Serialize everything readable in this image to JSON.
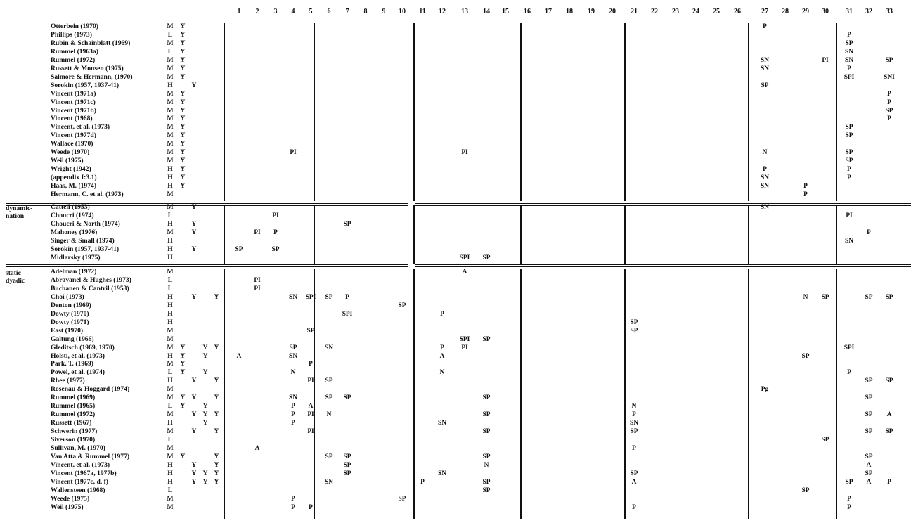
{
  "columns": [
    "1",
    "2",
    "3",
    "4",
    "5",
    "6",
    "7",
    "8",
    "9",
    "10",
    "11",
    "12",
    "13",
    "14",
    "15",
    "16",
    "17",
    "18",
    "19",
    "20",
    "21",
    "22",
    "23",
    "24",
    "25",
    "26",
    "27",
    "28",
    "29",
    "30",
    "31",
    "32",
    "33"
  ],
  "sections": [
    {
      "label": "",
      "rows": [
        {
          "ref": "Otterbein (1970)",
          "f": [
            "M",
            "Y"
          ],
          "marks": [
            [
              27,
              "P"
            ]
          ]
        },
        {
          "ref": "Phillips (1973)",
          "f": [
            "L",
            "Y"
          ],
          "marks": [
            [
              31,
              "P"
            ]
          ]
        },
        {
          "ref": "Rubin & Schainblatt (1969)",
          "f": [
            "M",
            "Y"
          ],
          "marks": [
            [
              31,
              "SP"
            ]
          ]
        },
        {
          "ref": "Rummel (1963a)",
          "f": [
            "L",
            "Y"
          ],
          "marks": [
            [
              31,
              "SN"
            ]
          ]
        },
        {
          "ref": "Rummel (1972)",
          "f": [
            "M",
            "Y"
          ],
          "marks": [
            [
              27,
              "SN"
            ],
            [
              30,
              "PI"
            ],
            [
              31,
              "SN"
            ],
            [
              33,
              "SP"
            ]
          ]
        },
        {
          "ref": "Russett & Monsen (1975)",
          "f": [
            "M",
            "Y"
          ],
          "marks": [
            [
              27,
              "SN"
            ],
            [
              31,
              "P"
            ]
          ]
        },
        {
          "ref": "Salmore & Hermann, (1970)",
          "f": [
            "M",
            "Y"
          ],
          "marks": [
            [
              31,
              "SPI"
            ],
            [
              33,
              "SNI"
            ]
          ]
        },
        {
          "ref": "Sorokin (1957, 1937-41)",
          "f": [
            "H",
            "",
            "Y"
          ],
          "marks": [
            [
              27,
              "SP"
            ]
          ]
        },
        {
          "ref": "Vincent (1971a)",
          "f": [
            "M",
            "Y"
          ],
          "marks": [
            [
              33,
              "P"
            ]
          ]
        },
        {
          "ref": "Vincent (1971c)",
          "f": [
            "M",
            "Y"
          ],
          "marks": [
            [
              33,
              "P"
            ]
          ]
        },
        {
          "ref": "Vincent (1971b)",
          "f": [
            "M",
            "Y"
          ],
          "marks": [
            [
              33,
              "SP"
            ]
          ]
        },
        {
          "ref": "Vincent (1968)",
          "f": [
            "M",
            "Y"
          ],
          "marks": [
            [
              33,
              "P"
            ]
          ]
        },
        {
          "ref": "Vincent, et al. (1973)",
          "f": [
            "M",
            "Y"
          ],
          "marks": [
            [
              31,
              "SP"
            ]
          ]
        },
        {
          "ref": "Vincent (1977d)",
          "f": [
            "M",
            "Y"
          ],
          "marks": [
            [
              31,
              "SP"
            ]
          ]
        },
        {
          "ref": "Wallace (1970)",
          "f": [
            "M",
            "Y"
          ],
          "marks": []
        },
        {
          "ref": "Weede (1970)",
          "f": [
            "M",
            "Y"
          ],
          "marks": [
            [
              4,
              "PI"
            ],
            [
              13,
              "PI"
            ],
            [
              27,
              "N"
            ],
            [
              31,
              "SP"
            ]
          ]
        },
        {
          "ref": "Weil (1975)",
          "f": [
            "M",
            "Y"
          ],
          "marks": [
            [
              31,
              "SP"
            ]
          ]
        },
        {
          "ref": "Wright (1942)",
          "f": [
            "H",
            "Y"
          ],
          "marks": [
            [
              27,
              "P"
            ],
            [
              31,
              "P"
            ]
          ]
        },
        {
          "ref": "(appendix I:3.1)",
          "f": [
            "H",
            "Y"
          ],
          "marks": [
            [
              27,
              "SN"
            ],
            [
              31,
              "P"
            ]
          ]
        },
        {
          "ref": "Haas, M. (1974)",
          "f": [
            "H",
            "Y"
          ],
          "marks": [
            [
              27,
              "SN"
            ],
            [
              29,
              "P"
            ]
          ]
        },
        {
          "ref": "Hermann, C. et al. (1973)",
          "f": [
            "M"
          ],
          "marks": [
            [
              29,
              "P"
            ]
          ]
        }
      ]
    },
    {
      "label": "dynamic-\nnation",
      "rows": [
        {
          "ref": "Cattell (1953)",
          "f": [
            "M",
            "",
            "Y"
          ],
          "marks": [
            [
              27,
              "SN"
            ]
          ]
        },
        {
          "ref": "Choucri (1974)",
          "f": [
            "L"
          ],
          "marks": [
            [
              3,
              "PI"
            ],
            [
              31,
              "PI"
            ]
          ]
        },
        {
          "ref": "Choucri & North (1974)",
          "f": [
            "H",
            "",
            "Y"
          ],
          "marks": [
            [
              7,
              "SP"
            ]
          ]
        },
        {
          "ref": "Mahoney (1976)",
          "f": [
            "M",
            "",
            "Y"
          ],
          "marks": [
            [
              2,
              "PI"
            ],
            [
              3,
              "P"
            ],
            [
              32,
              "P"
            ]
          ]
        },
        {
          "ref": "Singer & Small (1974)",
          "f": [
            "H"
          ],
          "marks": [
            [
              31,
              "SN"
            ]
          ]
        },
        {
          "ref": "Sorokin (1957, 1937-41)",
          "f": [
            "H",
            "",
            "Y"
          ],
          "marks": [
            [
              1,
              "SP"
            ],
            [
              3,
              "SP"
            ]
          ]
        },
        {
          "ref": "Midlarsky (1975)",
          "f": [
            "H"
          ],
          "marks": [
            [
              13,
              "SPI"
            ],
            [
              14,
              "SP"
            ]
          ]
        }
      ]
    },
    {
      "label": "static-\ndyadic",
      "rows": [
        {
          "ref": "Adelman (1972)",
          "f": [
            "M"
          ],
          "marks": [
            [
              13,
              "A"
            ]
          ]
        },
        {
          "ref": "Abravanel & Hughes (1973)",
          "f": [
            "L"
          ],
          "marks": [
            [
              2,
              "PI"
            ]
          ]
        },
        {
          "ref": "Buchanen & Cantril (1953)",
          "f": [
            "L"
          ],
          "marks": [
            [
              2,
              "PI"
            ]
          ]
        },
        {
          "ref": "Choi (1973)",
          "f": [
            "H",
            "",
            "Y",
            "",
            "Y"
          ],
          "marks": [
            [
              4,
              "SN"
            ],
            [
              5,
              "SPI"
            ],
            [
              6,
              "SP"
            ],
            [
              7,
              "P"
            ],
            [
              29,
              "N"
            ],
            [
              30,
              "SP"
            ],
            [
              32,
              "SP"
            ],
            [
              33,
              "SP"
            ]
          ]
        },
        {
          "ref": "Denton (1969)",
          "f": [
            "H"
          ],
          "marks": [
            [
              10,
              "SP"
            ]
          ]
        },
        {
          "ref": "Dowty (1970)",
          "f": [
            "H"
          ],
          "marks": [
            [
              7,
              "SPI"
            ],
            [
              12,
              "P"
            ]
          ]
        },
        {
          "ref": "Dowty (1971)",
          "f": [
            "H"
          ],
          "marks": [
            [
              21,
              "SP"
            ]
          ]
        },
        {
          "ref": "East (1970)",
          "f": [
            "M"
          ],
          "marks": [
            [
              5,
              "SP"
            ],
            [
              21,
              "SP"
            ]
          ]
        },
        {
          "ref": "Galtung (1966)",
          "f": [
            "M"
          ],
          "marks": [
            [
              13,
              "SPI"
            ],
            [
              14,
              "SP"
            ]
          ]
        },
        {
          "ref": "Gleditsch (1969, 1970)",
          "f": [
            "M",
            "Y",
            "",
            "Y",
            "Y"
          ],
          "marks": [
            [
              4,
              "SP"
            ],
            [
              6,
              "SN"
            ],
            [
              12,
              "P"
            ],
            [
              13,
              "PI"
            ],
            [
              31,
              "SPI"
            ]
          ]
        },
        {
          "ref": "Holsti, et al. (1973)",
          "f": [
            "H",
            "Y",
            "",
            "Y"
          ],
          "marks": [
            [
              1,
              "A"
            ],
            [
              4,
              "SN"
            ],
            [
              12,
              "A"
            ],
            [
              29,
              "SP"
            ]
          ]
        },
        {
          "ref": "Park, T. (1969)",
          "f": [
            "M",
            "Y"
          ],
          "marks": [
            [
              5,
              "P"
            ]
          ]
        },
        {
          "ref": "Powel, et al. (1974)",
          "f": [
            "L",
            "Y",
            "",
            "Y"
          ],
          "marks": [
            [
              4,
              "N"
            ],
            [
              12,
              "N"
            ],
            [
              31,
              "P"
            ]
          ]
        },
        {
          "ref": "Rhee (1977)",
          "f": [
            "H",
            "",
            "Y",
            "",
            "Y"
          ],
          "marks": [
            [
              5,
              "PI"
            ],
            [
              6,
              "SP"
            ],
            [
              32,
              "SP"
            ],
            [
              33,
              "SP"
            ]
          ]
        },
        {
          "ref": "Rosenau & Hoggard (1974)",
          "f": [
            "M"
          ],
          "marks": [
            [
              27,
              "Pg"
            ]
          ]
        },
        {
          "ref": "Rummel (1969)",
          "f": [
            "M",
            "Y",
            "Y",
            "",
            "Y"
          ],
          "marks": [
            [
              4,
              "SN"
            ],
            [
              6,
              "SP"
            ],
            [
              7,
              "SP"
            ],
            [
              14,
              "SP"
            ],
            [
              32,
              "SP"
            ]
          ]
        },
        {
          "ref": "Rummel (1965)",
          "f": [
            "L",
            "Y",
            "",
            "Y"
          ],
          "marks": [
            [
              4,
              "P"
            ],
            [
              5,
              "A"
            ],
            [
              21,
              "N"
            ]
          ]
        },
        {
          "ref": "Rummel (1972)",
          "f": [
            "M",
            "",
            "Y",
            "Y",
            "Y"
          ],
          "marks": [
            [
              4,
              "P"
            ],
            [
              5,
              "PI"
            ],
            [
              6,
              "N"
            ],
            [
              14,
              "SP"
            ],
            [
              21,
              "P"
            ],
            [
              32,
              "SP"
            ],
            [
              33,
              "A"
            ]
          ]
        },
        {
          "ref": "Russett (1967)",
          "f": [
            "H",
            "",
            "",
            "Y"
          ],
          "marks": [
            [
              4,
              "P"
            ],
            [
              12,
              "SN"
            ],
            [
              21,
              "SN"
            ]
          ]
        },
        {
          "ref": "Schwerin (1977)",
          "f": [
            "M",
            "",
            "Y",
            "",
            "Y"
          ],
          "marks": [
            [
              5,
              "PI"
            ],
            [
              14,
              "SP"
            ],
            [
              21,
              "SP"
            ],
            [
              32,
              "SP"
            ],
            [
              33,
              "SP"
            ]
          ]
        },
        {
          "ref": "Siverson (1970)",
          "f": [
            "L"
          ],
          "marks": [
            [
              30,
              "SP"
            ]
          ]
        },
        {
          "ref": "Sullivan, M. (1970)",
          "f": [
            "M"
          ],
          "marks": [
            [
              2,
              "A"
            ],
            [
              21,
              "P"
            ]
          ]
        },
        {
          "ref": "Van Atta & Rummel (1977)",
          "f": [
            "M",
            "Y",
            "",
            "",
            "Y"
          ],
          "marks": [
            [
              6,
              "SP"
            ],
            [
              7,
              "SP"
            ],
            [
              14,
              "SP"
            ],
            [
              32,
              "SP"
            ]
          ]
        },
        {
          "ref": "Vincent, et al. (1973)",
          "f": [
            "H",
            "",
            "Y",
            "",
            "Y"
          ],
          "marks": [
            [
              7,
              "SP"
            ],
            [
              14,
              "N"
            ],
            [
              32,
              "A"
            ]
          ]
        },
        {
          "ref": "Vincent (1967a, 1977b)",
          "f": [
            "H",
            "",
            "Y",
            "Y",
            "Y"
          ],
          "marks": [
            [
              7,
              "SP"
            ],
            [
              12,
              "SN"
            ],
            [
              21,
              "SP"
            ],
            [
              32,
              "SP"
            ]
          ]
        },
        {
          "ref": "Vincent (1977c, d, f)",
          "f": [
            "H",
            "",
            "Y",
            "Y",
            "Y"
          ],
          "marks": [
            [
              6,
              "SN"
            ],
            [
              11,
              "P"
            ],
            [
              14,
              "SP"
            ],
            [
              21,
              "A"
            ],
            [
              31,
              "SP"
            ],
            [
              32,
              "A"
            ],
            [
              33,
              "P"
            ]
          ]
        },
        {
          "ref": "Wallensteen (1968)",
          "f": [
            "L"
          ],
          "marks": [
            [
              14,
              "SP"
            ],
            [
              29,
              "SP"
            ]
          ]
        },
        {
          "ref": "Weede (1975)",
          "f": [
            "M"
          ],
          "marks": [
            [
              4,
              "P"
            ],
            [
              10,
              "SP"
            ],
            [
              31,
              "P"
            ]
          ]
        },
        {
          "ref": "Weil (1975)",
          "f": [
            "M"
          ],
          "marks": [
            [
              4,
              "P"
            ],
            [
              5,
              "P"
            ],
            [
              21,
              "P"
            ],
            [
              31,
              "P"
            ]
          ]
        }
      ]
    }
  ]
}
